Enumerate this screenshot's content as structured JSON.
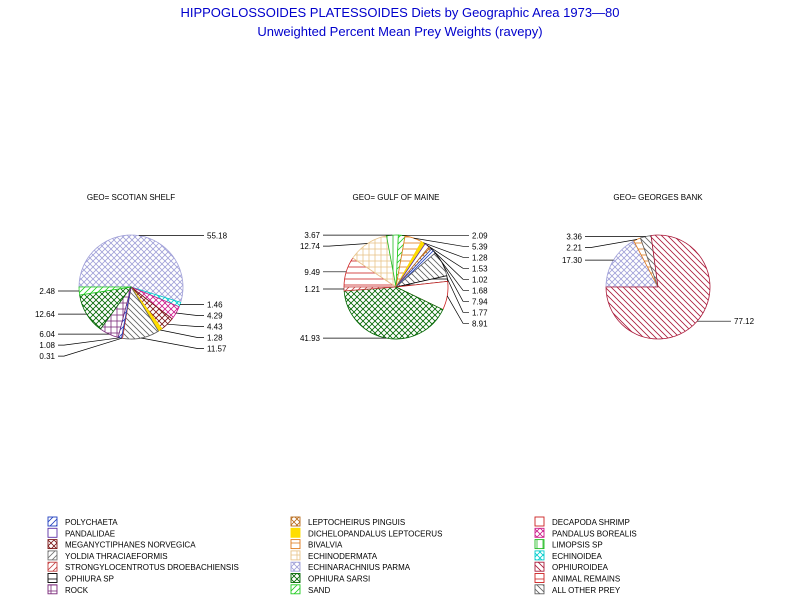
{
  "title": "HIPPOGLOSSOIDES PLATESSOIDES Diets by Geographic Area 1973—80",
  "subtitle": "Unweighted Percent Mean Prey Weights (ravepy)",
  "categories": [
    {
      "key": "polychaeta",
      "name": "POLYCHAETA",
      "color": "#1f3fbf",
      "pattern": "fdiag"
    },
    {
      "key": "pandalidae",
      "name": "PANDALIDAE",
      "color": "#5b2da6",
      "pattern": "none"
    },
    {
      "key": "meganyctiphanes",
      "name": "MEGANYCTIPHANES NORVEGICA",
      "color": "#7a1414",
      "pattern": "cross"
    },
    {
      "key": "yoldia",
      "name": "YOLDIA THRACIAEFORMIS",
      "color": "#707070",
      "pattern": "fdiag"
    },
    {
      "key": "strongylocentrotus",
      "name": "STRONGYLOCENTROTUS DROEBACHIENSIS",
      "color": "#c44040",
      "pattern": "fdiag"
    },
    {
      "key": "ophiura_sp",
      "name": "OPHIURA SP",
      "color": "#000000",
      "pattern": "hline"
    },
    {
      "key": "rock",
      "name": "ROCK",
      "color": "#7a2a7a",
      "pattern": "grid"
    },
    {
      "key": "leptocheirus",
      "name": "LEPTOCHEIRUS PINGUIS",
      "color": "#b86a1a",
      "pattern": "cross"
    },
    {
      "key": "dichelopandalus",
      "name": "DICHELOPANDALUS LEPTOCERUS",
      "color": "#ffdd00",
      "pattern": "solid"
    },
    {
      "key": "bivalvia",
      "name": "BIVALVIA",
      "color": "#e07a1a",
      "pattern": "hline"
    },
    {
      "key": "echinodermata",
      "name": "ECHINODERMATA",
      "color": "#e8c48a",
      "pattern": "grid"
    },
    {
      "key": "echinarachnius",
      "name": "ECHINARACHNIUS PARMA",
      "color": "#a0a0d8",
      "pattern": "cross"
    },
    {
      "key": "ophiura_sarsi",
      "name": "OPHIURA SARSI",
      "color": "#006600",
      "pattern": "cross"
    },
    {
      "key": "sand",
      "name": "SAND",
      "color": "#22cc22",
      "pattern": "fdiag"
    },
    {
      "key": "decapoda",
      "name": "DECAPODA SHRIMP",
      "color": "#cc2020",
      "pattern": "none"
    },
    {
      "key": "pandalus",
      "name": "PANDALUS BOREALIS",
      "color": "#cc1a8a",
      "pattern": "cross"
    },
    {
      "key": "limopsis",
      "name": "LIMOPSIS SP",
      "color": "#22bb22",
      "pattern": "vline"
    },
    {
      "key": "echinoidea",
      "name": "ECHINOIDEA",
      "color": "#00cccc",
      "pattern": "cross"
    },
    {
      "key": "ophiuroidea",
      "name": "OPHIUROIDEA",
      "color": "#aa1a3a",
      "pattern": "bdiag"
    },
    {
      "key": "animal_remains",
      "name": "ANIMAL REMAINS",
      "color": "#cc2020",
      "pattern": "hline"
    },
    {
      "key": "other",
      "name": "ALL OTHER PREY",
      "color": "#606060",
      "pattern": "bdiag"
    }
  ],
  "chart_data": [
    {
      "type": "pie",
      "title": "GEO= SCOTIAN SHELF",
      "slices": [
        {
          "category": "echinarachnius",
          "value": 55.18,
          "label": "55.18"
        },
        {
          "category": "echinoidea",
          "value": 1.46,
          "label": "1.46"
        },
        {
          "category": "pandalus",
          "value": 4.29,
          "label": "4.29"
        },
        {
          "category": "meganyctiphanes",
          "value": 4.43,
          "label": "4.43"
        },
        {
          "category": "dichelopandalus",
          "value": 1.28,
          "label": "1.28"
        },
        {
          "category": "other",
          "value": 11.57,
          "label": "11.57"
        },
        {
          "category": "strongylocentrotus",
          "value": 0.31,
          "label": "0.31"
        },
        {
          "category": "polychaeta",
          "value": 1.08,
          "label": "1.08"
        },
        {
          "category": "rock",
          "value": 6.04,
          "label": "6.04"
        },
        {
          "category": "ophiura_sarsi",
          "value": 12.64,
          "label": "12.64"
        },
        {
          "category": "sand",
          "value": 2.48,
          "label": "2.48"
        }
      ]
    },
    {
      "type": "pie",
      "title": "GEO= GULF OF MAINE",
      "slices": [
        {
          "category": "animal_remains",
          "value": 9.49,
          "label": "9.49"
        },
        {
          "category": "echinodermata",
          "value": 12.74,
          "label": "12.74"
        },
        {
          "category": "limopsis",
          "value": 3.67,
          "label": "3.67"
        },
        {
          "category": "sand",
          "value": 2.09,
          "label": "2.09"
        },
        {
          "category": "bivalvia",
          "value": 5.39,
          "label": "5.39"
        },
        {
          "category": "dichelopandalus",
          "value": 1.28,
          "label": "1.28"
        },
        {
          "category": "pandalidae",
          "value": 1.53,
          "label": "1.53"
        },
        {
          "category": "leptocheirus",
          "value": 1.02,
          "label": "1.02"
        },
        {
          "category": "polychaeta",
          "value": 1.68,
          "label": "1.68"
        },
        {
          "category": "other",
          "value": 7.94,
          "label": "7.94"
        },
        {
          "category": "ophiura_sp",
          "value": 1.77,
          "label": "1.77"
        },
        {
          "category": "decapoda",
          "value": 8.91,
          "label": "8.91"
        },
        {
          "category": "ophiura_sarsi",
          "value": 41.93,
          "label": "41.93"
        },
        {
          "category": "strongylocentrotus",
          "value": 1.21,
          "label": "1.21"
        }
      ]
    },
    {
      "type": "pie",
      "title": "GEO= GEORGES BANK",
      "slices": [
        {
          "category": "echinarachnius",
          "value": 17.3,
          "label": "17.30"
        },
        {
          "category": "bivalvia",
          "value": 2.21,
          "label": "2.21"
        },
        {
          "category": "other",
          "value": 3.36,
          "label": "3.36"
        },
        {
          "category": "ophiuroidea",
          "value": 77.12,
          "label": "77.12"
        }
      ]
    }
  ]
}
